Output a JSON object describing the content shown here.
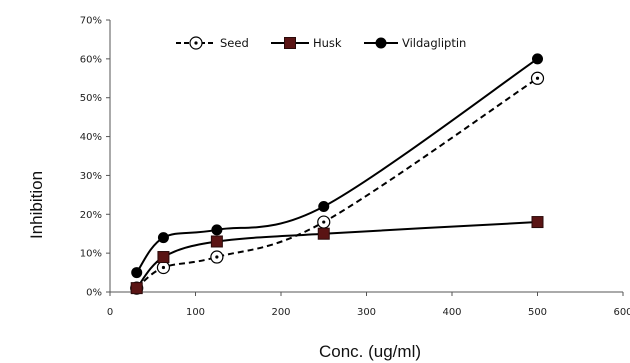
{
  "chart_data": {
    "type": "line",
    "title": "",
    "xlabel": "Conc. (ug/ml)",
    "ylabel": "Inhibition",
    "xlim": [
      0,
      600
    ],
    "ylim": [
      0,
      0.7
    ],
    "x_ticks": [
      0,
      100,
      200,
      300,
      400,
      500,
      600
    ],
    "y_ticks": [
      0,
      0.1,
      0.2,
      0.3,
      0.4,
      0.5,
      0.6,
      0.7
    ],
    "x_tick_labels": [
      "0",
      "100",
      "200",
      "300",
      "400",
      "500",
      "600"
    ],
    "y_tick_labels": [
      "0%",
      "10%",
      "20%",
      "30%",
      "40%",
      "50%",
      "60%",
      "70%"
    ],
    "grid": false,
    "legend_position": "top",
    "x": [
      31.25,
      62.5,
      125,
      250,
      500
    ],
    "series": [
      {
        "name": "Seed",
        "values": [
          0.01,
          0.063,
          0.09,
          0.18,
          0.55
        ],
        "color": "#000000",
        "line": "dashed",
        "marker": "open-circle-dot",
        "smooth": true
      },
      {
        "name": "Husk",
        "values": [
          0.01,
          0.09,
          0.13,
          0.15,
          0.18
        ],
        "color": "#000000",
        "marker_color": "#5a1414",
        "line": "solid",
        "marker": "square",
        "smooth": true
      },
      {
        "name": "Vildagliptin",
        "values": [
          0.05,
          0.14,
          0.16,
          0.22,
          0.6
        ],
        "color": "#000000",
        "line": "solid",
        "marker": "filled-circle",
        "smooth": true
      }
    ]
  }
}
